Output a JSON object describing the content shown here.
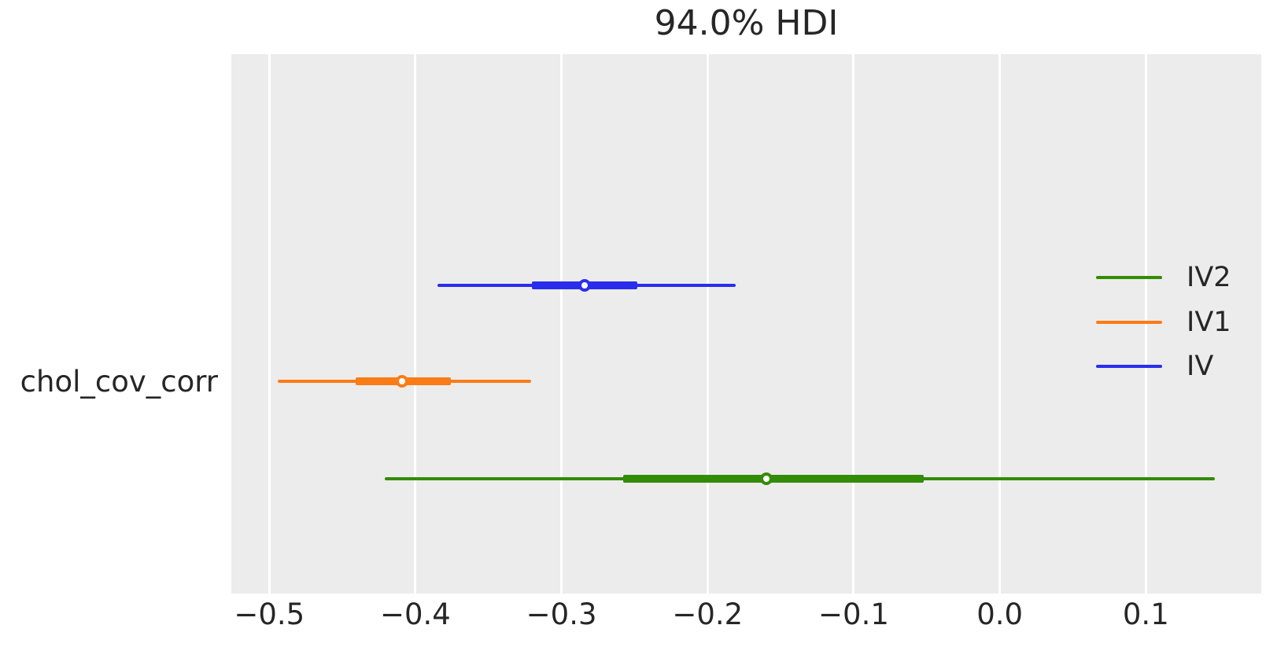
{
  "title": "94.0% HDI",
  "y_axis_label": "chol_cov_corr",
  "colors": {
    "plot_background": "#ececec",
    "grid": "#ffffff",
    "text": "#262626",
    "blue": "#2a2eec",
    "orange": "#fa7c17",
    "green": "#328c06"
  },
  "legend": {
    "position": "center right",
    "items": [
      {
        "label": "IV2",
        "color": "#328c06"
      },
      {
        "label": "IV1",
        "color": "#fa7c17"
      },
      {
        "label": "IV",
        "color": "#2a2eec"
      }
    ]
  },
  "chart_data": {
    "type": "forest",
    "title": "94.0% HDI",
    "hdi_probability": "94.0%",
    "variable": "chol_cov_corr",
    "xlabel": "",
    "xlim": [
      -0.526,
      0.179
    ],
    "xticks": [
      -0.5,
      -0.4,
      -0.3,
      -0.2,
      -0.1,
      0.0,
      0.1
    ],
    "xtick_labels": [
      "−0.5",
      "−0.4",
      "−0.3",
      "−0.2",
      "−0.1",
      "0.0",
      "0.1"
    ],
    "grid": "vertical-white",
    "legend_position": "center right",
    "series": [
      {
        "name": "IV",
        "color": "#2a2eec",
        "hdi_94": [
          -0.385,
          -0.181
        ],
        "interquartile": [
          -0.32,
          -0.248
        ],
        "median": -0.284
      },
      {
        "name": "IV1",
        "color": "#fa7c17",
        "hdi_94": [
          -0.494,
          -0.321
        ],
        "interquartile": [
          -0.441,
          -0.376
        ],
        "median": -0.409
      },
      {
        "name": "IV2",
        "color": "#328c06",
        "hdi_94": [
          -0.421,
          0.147
        ],
        "interquartile": [
          -0.258,
          -0.052
        ],
        "median": -0.16
      }
    ]
  }
}
